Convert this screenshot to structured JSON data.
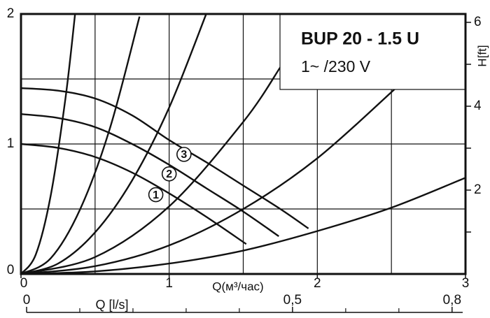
{
  "chart_data": {
    "type": "line",
    "title": "BUP 20 - 1.5 U",
    "subtitle": "1~ /230 V",
    "x_label": "Q(м³/час)",
    "y2_label": "H[ft]",
    "x2_label": "Q [l/s]",
    "xlim": [
      0,
      3
    ],
    "xticks": [
      0,
      1,
      2,
      3
    ],
    "xgrid": [
      0.5,
      1,
      1.5,
      2,
      2.5
    ],
    "ylim": [
      0,
      2
    ],
    "yticks": [
      0,
      1,
      2
    ],
    "ygrid": [
      0.5,
      1,
      1.5
    ],
    "y2lim": [
      0,
      6.2
    ],
    "y2ticks": [
      2,
      4,
      6
    ],
    "y2minor_ticks": [
      1,
      3,
      5
    ],
    "x2lim": [
      0,
      0.82
    ],
    "x2ticks": [
      0,
      {
        "value": 0.5,
        "label": "0,5"
      },
      {
        "value": 0.8,
        "label": "0,8"
      }
    ],
    "x2minor_ticks": [
      0.1,
      0.2,
      0.3,
      0.4,
      0.6,
      0.7
    ],
    "color": "#111111",
    "series": [
      {
        "name": "3",
        "x": [
          0,
          0.25,
          0.5,
          0.75,
          1,
          1.25,
          1.5,
          1.75,
          1.94
        ],
        "values": [
          1.43,
          1.41,
          1.35,
          1.22,
          1.03,
          0.86,
          0.68,
          0.5,
          0.35
        ],
        "label_at": [
          1.1,
          0.92
        ]
      },
      {
        "name": "2",
        "x": [
          0,
          0.25,
          0.5,
          0.75,
          1,
          1.25,
          1.5,
          1.74
        ],
        "values": [
          1.23,
          1.2,
          1.13,
          1.0,
          0.84,
          0.66,
          0.48,
          0.29
        ],
        "label_at": [
          1.0,
          0.77
        ]
      },
      {
        "name": "1",
        "x": [
          0,
          0.25,
          0.5,
          0.75,
          1,
          1.25,
          1.52
        ],
        "values": [
          1.0,
          0.97,
          0.9,
          0.78,
          0.62,
          0.44,
          0.23
        ],
        "label_at": [
          0.91,
          0.61
        ]
      }
    ],
    "system_curves": [
      {
        "x": [
          0,
          0.1,
          0.2,
          0.3,
          0.365
        ],
        "values": [
          0,
          0.15,
          0.6,
          1.35,
          2.0
        ]
      },
      {
        "x": [
          0,
          0.2,
          0.4,
          0.6,
          0.8
        ],
        "values": [
          0,
          0.12,
          0.5,
          1.12,
          1.98
        ]
      },
      {
        "x": [
          0,
          0.25,
          0.5,
          0.75,
          1,
          1.25
        ],
        "values": [
          0,
          0.08,
          0.32,
          0.72,
          1.28,
          2.0
        ]
      },
      {
        "x": [
          0,
          0.5,
          1,
          1.5,
          1.75
        ],
        "values": [
          0,
          0.13,
          0.52,
          1.17,
          1.59
        ]
      },
      {
        "x": [
          0,
          0.5,
          1,
          1.5,
          2,
          2.53
        ],
        "values": [
          0,
          0.06,
          0.22,
          0.5,
          0.89,
          1.43
        ]
      },
      {
        "x": [
          0,
          0.5,
          1,
          1.5,
          2,
          2.5,
          3
        ],
        "values": [
          0,
          0.02,
          0.08,
          0.18,
          0.33,
          0.51,
          0.74
        ]
      }
    ]
  }
}
